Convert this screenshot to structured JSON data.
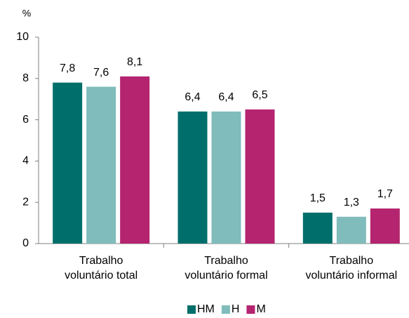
{
  "chart_data": {
    "type": "bar",
    "ylabel": "%",
    "categories": [
      [
        "Trabalho",
        "voluntário total"
      ],
      [
        "Trabalho",
        "voluntário formal"
      ],
      [
        "Trabalho",
        "voluntário informal"
      ]
    ],
    "series": [
      {
        "name": "HM",
        "color": "#006f6b",
        "values": [
          7.8,
          6.4,
          1.5
        ],
        "value_labels": [
          "7,8",
          "6,4",
          "1,5"
        ]
      },
      {
        "name": "H",
        "color": "#7fbcbb",
        "values": [
          7.6,
          6.4,
          1.3
        ],
        "value_labels": [
          "7,6",
          "6,4",
          "1,3"
        ]
      },
      {
        "name": "M",
        "color": "#b5246f",
        "values": [
          8.1,
          6.5,
          1.7
        ],
        "value_labels": [
          "8,1",
          "6,5",
          "1,7"
        ]
      }
    ],
    "ylim": [
      0,
      10
    ],
    "yticks": [
      0,
      2,
      4,
      6,
      8,
      10
    ],
    "grid": false,
    "legend": "bottom"
  }
}
